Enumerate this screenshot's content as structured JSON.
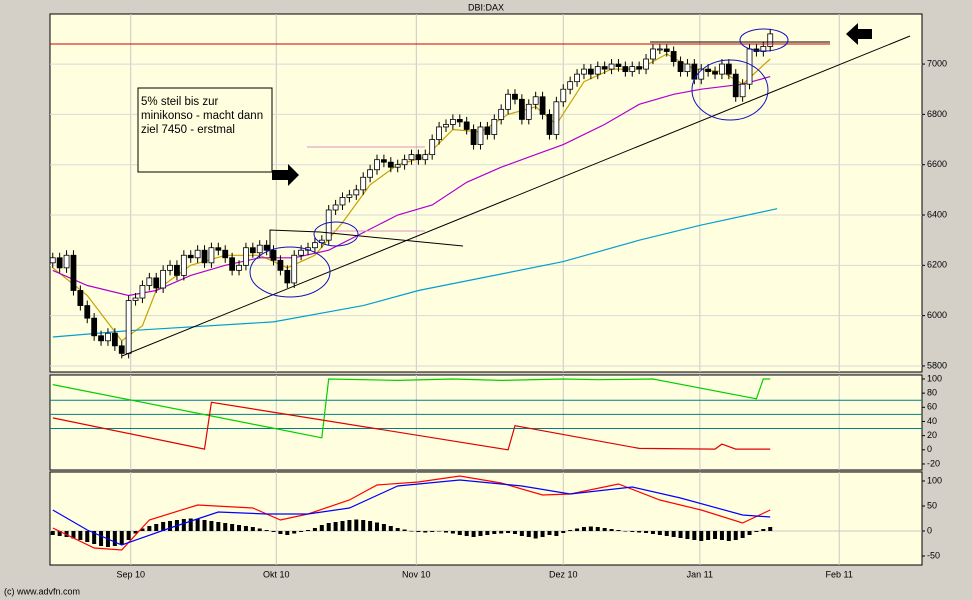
{
  "chart_data": [
    {
      "type": "candlestick",
      "title": "DBI:DAX",
      "annotations": [
        "5% steil bis zur",
        "minikonso - macht dann",
        "ziel 7450 - erstmal"
      ],
      "xlim": [
        -0.4,
        126
      ],
      "ylim": [
        5776,
        7199
      ],
      "yticks": [
        5800,
        6000,
        6200,
        6400,
        6600,
        6800,
        7000
      ],
      "grid": true,
      "up_color": "#ffffff",
      "down_color": "#000000",
      "x": [
        0,
        1,
        2,
        3,
        4,
        5,
        6,
        7,
        8,
        9,
        10,
        11,
        12,
        13,
        14,
        15,
        16,
        17,
        18,
        19,
        20,
        21,
        22,
        23,
        24,
        25,
        26,
        27,
        28,
        29,
        30,
        31,
        32,
        33,
        34,
        35,
        36,
        37,
        38,
        39,
        40,
        41,
        42,
        43,
        44,
        45,
        46,
        47,
        48,
        49,
        50,
        51,
        52,
        53,
        54,
        55,
        56,
        57,
        58,
        59,
        60,
        61,
        62,
        63,
        64,
        65,
        66,
        67,
        68,
        69,
        70,
        71,
        72,
        73,
        74,
        75,
        76,
        77,
        78,
        79,
        80,
        81,
        82,
        83,
        84,
        85,
        86,
        87,
        88,
        89,
        90,
        91,
        92,
        93,
        94,
        95,
        96,
        97,
        98,
        99,
        100,
        101,
        102,
        103,
        104
      ],
      "ohlc": [
        [
          6210,
          6250,
          6190,
          6230
        ],
        [
          6230,
          6250,
          6170,
          6190
        ],
        [
          6190,
          6260,
          6170,
          6240
        ],
        [
          6240,
          6260,
          6080,
          6100
        ],
        [
          6100,
          6120,
          6020,
          6040
        ],
        [
          6040,
          6060,
          5970,
          5990
        ],
        [
          5990,
          6010,
          5900,
          5920
        ],
        [
          5920,
          5940,
          5880,
          5900
        ],
        [
          5900,
          5950,
          5880,
          5930
        ],
        [
          5930,
          5950,
          5860,
          5880
        ],
        [
          5880,
          5900,
          5830,
          5850
        ],
        [
          5850,
          6080,
          5830,
          6060
        ],
        [
          6060,
          6090,
          6040,
          6070
        ],
        [
          6070,
          6140,
          6050,
          6120
        ],
        [
          6120,
          6170,
          6100,
          6150
        ],
        [
          6150,
          6170,
          6090,
          6110
        ],
        [
          6110,
          6200,
          6090,
          6180
        ],
        [
          6180,
          6220,
          6160,
          6200
        ],
        [
          6200,
          6220,
          6140,
          6160
        ],
        [
          6160,
          6260,
          6140,
          6240
        ],
        [
          6240,
          6260,
          6210,
          6230
        ],
        [
          6230,
          6280,
          6210,
          6260
        ],
        [
          6260,
          6280,
          6190,
          6210
        ],
        [
          6210,
          6290,
          6190,
          6270
        ],
        [
          6270,
          6290,
          6240,
          6260
        ],
        [
          6260,
          6280,
          6210,
          6230
        ],
        [
          6230,
          6250,
          6160,
          6180
        ],
        [
          6180,
          6220,
          6160,
          6200
        ],
        [
          6200,
          6290,
          6180,
          6270
        ],
        [
          6270,
          6290,
          6230,
          6250
        ],
        [
          6250,
          6300,
          6230,
          6280
        ],
        [
          6280,
          6300,
          6240,
          6260
        ],
        [
          6260,
          6280,
          6200,
          6220
        ],
        [
          6220,
          6240,
          6160,
          6180
        ],
        [
          6180,
          6200,
          6110,
          6130
        ],
        [
          6130,
          6260,
          6110,
          6240
        ],
        [
          6240,
          6280,
          6220,
          6260
        ],
        [
          6260,
          6290,
          6240,
          6270
        ],
        [
          6270,
          6310,
          6250,
          6290
        ],
        [
          6290,
          6320,
          6270,
          6300
        ],
        [
          6300,
          6440,
          6280,
          6420
        ],
        [
          6420,
          6460,
          6400,
          6440
        ],
        [
          6440,
          6490,
          6420,
          6470
        ],
        [
          6470,
          6500,
          6450,
          6480
        ],
        [
          6480,
          6520,
          6460,
          6500
        ],
        [
          6500,
          6570,
          6480,
          6550
        ],
        [
          6550,
          6600,
          6530,
          6580
        ],
        [
          6580,
          6640,
          6560,
          6620
        ],
        [
          6620,
          6640,
          6590,
          6610
        ],
        [
          6610,
          6630,
          6570,
          6590
        ],
        [
          6590,
          6620,
          6570,
          6600
        ],
        [
          6600,
          6640,
          6580,
          6620
        ],
        [
          6620,
          6660,
          6600,
          6640
        ],
        [
          6640,
          6660,
          6600,
          6620
        ],
        [
          6620,
          6660,
          6600,
          6640
        ],
        [
          6640,
          6720,
          6620,
          6700
        ],
        [
          6700,
          6770,
          6680,
          6750
        ],
        [
          6750,
          6780,
          6730,
          6760
        ],
        [
          6760,
          6800,
          6740,
          6780
        ],
        [
          6780,
          6800,
          6750,
          6770
        ],
        [
          6770,
          6790,
          6720,
          6740
        ],
        [
          6740,
          6760,
          6660,
          6680
        ],
        [
          6680,
          6770,
          6660,
          6750
        ],
        [
          6750,
          6770,
          6700,
          6720
        ],
        [
          6720,
          6800,
          6700,
          6780
        ],
        [
          6780,
          6840,
          6760,
          6820
        ],
        [
          6820,
          6900,
          6800,
          6880
        ],
        [
          6880,
          6900,
          6840,
          6860
        ],
        [
          6860,
          6880,
          6760,
          6780
        ],
        [
          6780,
          6860,
          6760,
          6840
        ],
        [
          6840,
          6890,
          6820,
          6870
        ],
        [
          6870,
          6890,
          6780,
          6800
        ],
        [
          6800,
          6820,
          6700,
          6720
        ],
        [
          6720,
          6870,
          6700,
          6850
        ],
        [
          6850,
          6920,
          6830,
          6900
        ],
        [
          6900,
          6950,
          6880,
          6930
        ],
        [
          6930,
          6980,
          6910,
          6960
        ],
        [
          6960,
          7000,
          6940,
          6980
        ],
        [
          6980,
          7000,
          6940,
          6960
        ],
        [
          6960,
          7010,
          6940,
          6990
        ],
        [
          6990,
          7010,
          6960,
          6980
        ],
        [
          6980,
          7020,
          6960,
          7000
        ],
        [
          7000,
          7020,
          6970,
          6990
        ],
        [
          6990,
          7010,
          6950,
          6970
        ],
        [
          6970,
          7010,
          6950,
          6990
        ],
        [
          6990,
          7010,
          6960,
          6980
        ],
        [
          6980,
          7040,
          6960,
          7020
        ],
        [
          7020,
          7080,
          7000,
          7060
        ],
        [
          7060,
          7080,
          7040,
          7060
        ],
        [
          7060,
          7080,
          7030,
          7050
        ],
        [
          7050,
          7070,
          6990,
          7010
        ],
        [
          7010,
          7030,
          6950,
          6970
        ],
        [
          6970,
          7020,
          6950,
          7000
        ],
        [
          7000,
          7020,
          6920,
          6940
        ],
        [
          6940,
          7000,
          6920,
          6980
        ],
        [
          6980,
          7000,
          6950,
          6970
        ],
        [
          6970,
          6990,
          6940,
          6960
        ],
        [
          6960,
          7020,
          6940,
          7000
        ],
        [
          7000,
          7020,
          6940,
          6960
        ],
        [
          6960,
          6980,
          6850,
          6870
        ],
        [
          6870,
          6940,
          6850,
          6920
        ],
        [
          6920,
          7080,
          6900,
          7060
        ],
        [
          7060,
          7080,
          7030,
          7050
        ],
        [
          7050,
          7090,
          7030,
          7070
        ],
        [
          7070,
          7140,
          7050,
          7120
        ]
      ],
      "series": [
        {
          "color": "#c8a000",
          "x": [
            0,
            5,
            10,
            13,
            15,
            20,
            25,
            30,
            34,
            38,
            42,
            46,
            50,
            54,
            58,
            62,
            66,
            70,
            73,
            77,
            81,
            85,
            89,
            93,
            97,
            100,
            104
          ],
          "values": [
            6190,
            6080,
            5900,
            5960,
            6100,
            6200,
            6240,
            6240,
            6190,
            6240,
            6370,
            6520,
            6600,
            6630,
            6740,
            6730,
            6800,
            6830,
            6760,
            6930,
            6980,
            6980,
            7040,
            6980,
            6970,
            6920,
            7020
          ]
        },
        {
          "color": "#b000d0",
          "x": [
            0,
            5,
            11,
            15,
            20,
            25,
            30,
            35,
            40,
            45,
            50,
            55,
            60,
            65,
            70,
            74,
            80,
            85,
            90,
            94,
            100,
            104
          ],
          "values": [
            6180,
            6120,
            6080,
            6100,
            6160,
            6200,
            6230,
            6230,
            6260,
            6330,
            6400,
            6440,
            6530,
            6590,
            6640,
            6680,
            6760,
            6840,
            6880,
            6900,
            6920,
            6950
          ]
        },
        {
          "color": "#00a0d0",
          "x": [
            0,
            11,
            32,
            45,
            53,
            64,
            74,
            85,
            94,
            105
          ],
          "values": [
            5915,
            5940,
            5975,
            6040,
            6100,
            6160,
            6215,
            6300,
            6360,
            6425
          ]
        }
      ]
    },
    {
      "type": "line",
      "xlim": [
        -0.4,
        126
      ],
      "ylim": [
        -28.5,
        105.6
      ],
      "yticks": [
        100,
        80,
        60,
        40,
        20,
        0,
        -20
      ],
      "reference_lines": [
        70,
        50,
        30
      ],
      "reference_color": "#008080",
      "series": [
        {
          "color": "#00d000",
          "x": [
            0,
            39,
            40,
            50,
            58,
            65,
            74,
            79,
            87,
            102,
            103,
            104
          ],
          "values": [
            92,
            17,
            100,
            98,
            100,
            98,
            100,
            99,
            100,
            72,
            100,
            100
          ]
        },
        {
          "color": "#e00000",
          "x": [
            0,
            22,
            23,
            66,
            67,
            85,
            96,
            97,
            99,
            104
          ],
          "values": [
            45,
            1,
            67,
            0,
            34,
            2,
            1,
            8,
            1,
            1
          ]
        }
      ]
    },
    {
      "type": "combo",
      "xlim": [
        -0.4,
        126
      ],
      "ylim": [
        -68,
        118
      ],
      "yticks": [
        100,
        50,
        0,
        -50
      ],
      "color": "#000000",
      "xticks": [
        {
          "value": 11.3,
          "label": "Sep 10"
        },
        {
          "value": 32.4,
          "label": "Okt 10"
        },
        {
          "value": 52.7,
          "label": "Nov 10"
        },
        {
          "value": 74,
          "label": "Dez 10"
        },
        {
          "value": 93.8,
          "label": "Jan 11"
        },
        {
          "value": 114,
          "label": "Feb 11"
        }
      ],
      "x": [
        0,
        1,
        2,
        3,
        4,
        5,
        6,
        7,
        8,
        9,
        10,
        11,
        12,
        13,
        14,
        15,
        16,
        17,
        18,
        19,
        20,
        21,
        22,
        23,
        24,
        25,
        26,
        27,
        28,
        29,
        30,
        31,
        32,
        33,
        34,
        35,
        36,
        37,
        38,
        39,
        40,
        41,
        42,
        43,
        44,
        45,
        46,
        47,
        48,
        49,
        50,
        51,
        52,
        53,
        54,
        55,
        56,
        57,
        58,
        59,
        60,
        61,
        62,
        63,
        64,
        65,
        66,
        67,
        68,
        69,
        70,
        71,
        72,
        73,
        74,
        75,
        76,
        77,
        78,
        79,
        80,
        81,
        82,
        83,
        84,
        85,
        86,
        87,
        88,
        89,
        90,
        91,
        92,
        93,
        94,
        95,
        96,
        97,
        98,
        99,
        100,
        101,
        102,
        103,
        104
      ],
      "values": [
        -8,
        -10,
        -12,
        -15,
        -18,
        -22,
        -26,
        -30,
        -32,
        -30,
        -28,
        -18,
        -5,
        5,
        10,
        14,
        18,
        20,
        22,
        24,
        25,
        24,
        22,
        20,
        18,
        16,
        14,
        12,
        10,
        8,
        5,
        2,
        -2,
        -6,
        -8,
        -5,
        -2,
        2,
        6,
        12,
        16,
        18,
        20,
        22,
        23,
        22,
        20,
        17,
        14,
        10,
        6,
        3,
        0,
        -2,
        -3,
        -2,
        -1,
        -3,
        -5,
        -8,
        -10,
        -12,
        -10,
        -8,
        -6,
        -5,
        -4,
        -6,
        -10,
        -12,
        -15,
        -12,
        -8,
        -10,
        -4,
        2,
        5,
        8,
        9,
        8,
        6,
        4,
        2,
        0,
        -2,
        -3,
        -4,
        -6,
        -8,
        -10,
        -12,
        -14,
        -16,
        -18,
        -20,
        -18,
        -16,
        -18,
        -20,
        -18,
        -14,
        -8,
        -2,
        4,
        8
      ],
      "series": [
        {
          "color": "#ff0000",
          "x": [
            0,
            6,
            10,
            14,
            21,
            29,
            33,
            37,
            43,
            47,
            53,
            59,
            65,
            71,
            75,
            82,
            88,
            94,
            100,
            104
          ],
          "values": [
            6,
            -34,
            -38,
            22,
            52,
            46,
            22,
            34,
            62,
            92,
            98,
            110,
            96,
            72,
            74,
            94,
            62,
            42,
            16,
            42
          ]
        },
        {
          "color": "#0000ff",
          "x": [
            0,
            5,
            10,
            17,
            24,
            31,
            37,
            43,
            50,
            59,
            68,
            75,
            84,
            91,
            100,
            104
          ],
          "values": [
            42,
            2,
            -28,
            6,
            38,
            34,
            34,
            46,
            90,
            102,
            90,
            74,
            88,
            66,
            32,
            28
          ]
        }
      ]
    }
  ],
  "footer": "(c) www.advfn.com"
}
